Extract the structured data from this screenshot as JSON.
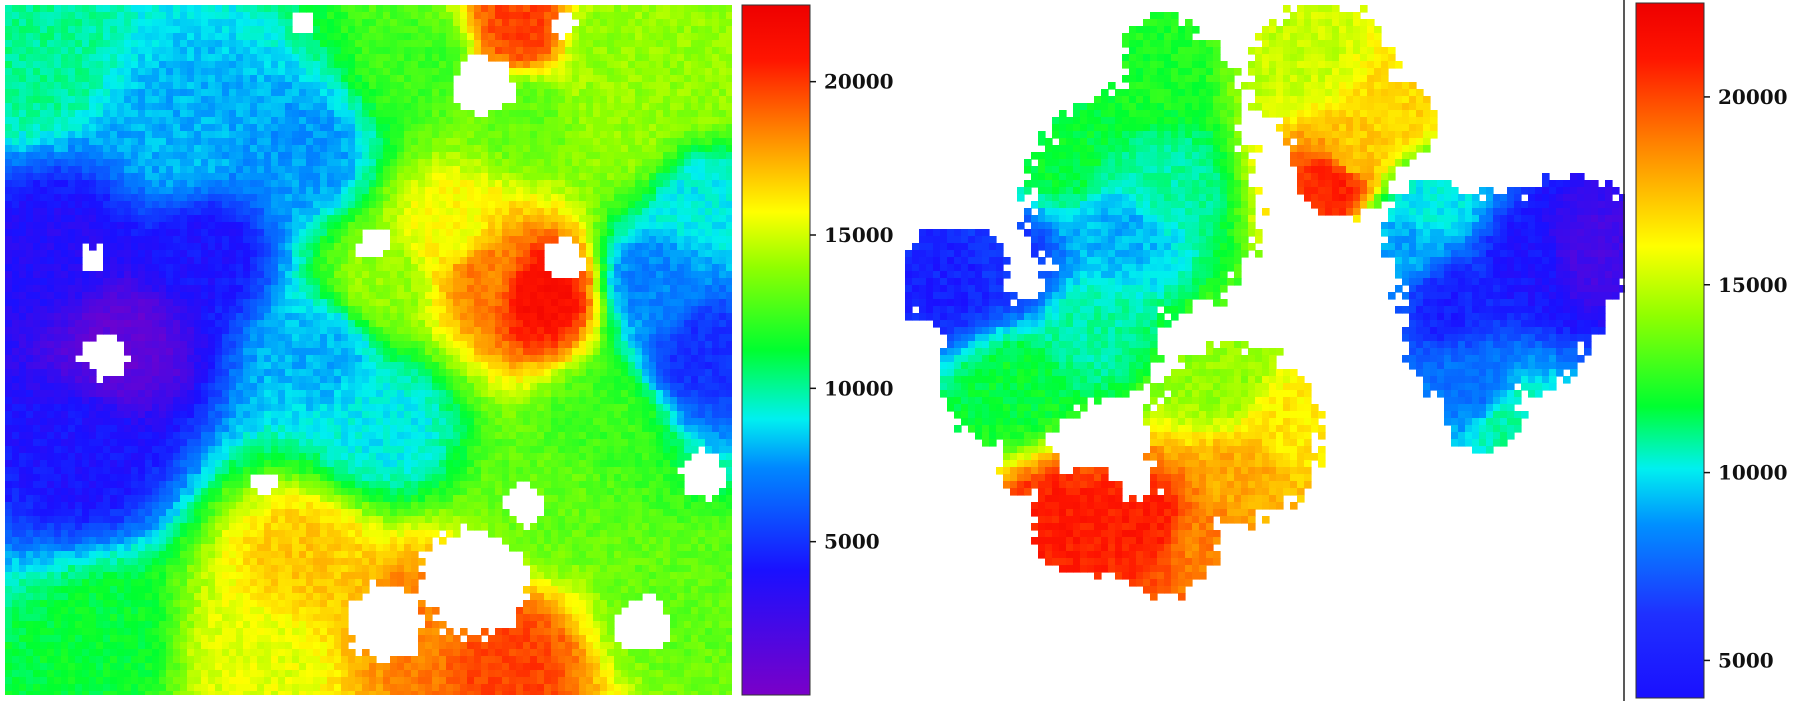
{
  "chart_data": [
    {
      "type": "heatmap",
      "title": "",
      "xlabel": "",
      "ylabel": "",
      "colormap": "jet",
      "colorbar": {
        "vmin": 0,
        "vmax": 22500,
        "ticks": [
          5000,
          10000,
          15000,
          20000
        ],
        "tick_labels": [
          "5000",
          "10000",
          "15000",
          "20000"
        ]
      },
      "fill": "dense",
      "grid": false
    },
    {
      "type": "heatmap",
      "title": "",
      "xlabel": "",
      "ylabel": "",
      "colormap": "jet",
      "colorbar": {
        "vmin": 4000,
        "vmax": 22500,
        "ticks": [
          5000,
          10000,
          15000,
          20000
        ],
        "tick_labels": [
          "5000",
          "10000",
          "15000",
          "20000"
        ]
      },
      "fill": "sparse",
      "grid": false
    }
  ],
  "colors": {
    "background": "#ffffff",
    "empty": "#ffffff",
    "axis": "#111111"
  }
}
